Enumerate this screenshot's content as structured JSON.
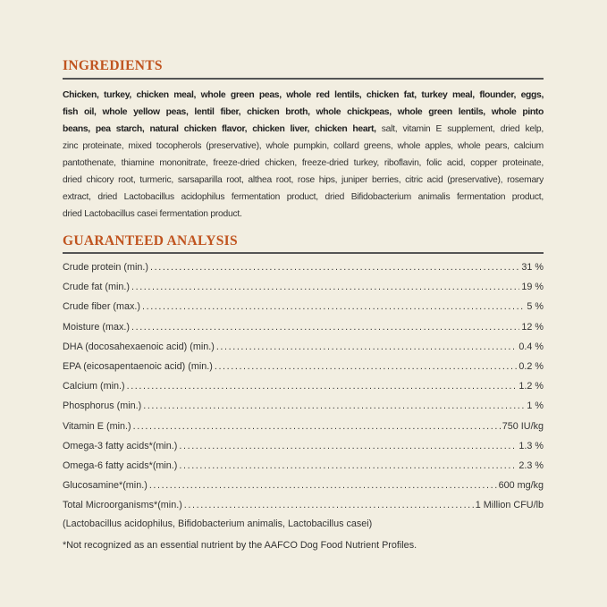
{
  "ingredients": {
    "title": "INGREDIENTS",
    "lines": [
      {
        "bold": "Chicken, turkey, chicken meal, whole green peas, whole red lentils, chicken fat, turkey meal, flounder, eggs,",
        "regular": ""
      },
      {
        "bold": "fish oil, whole yellow peas, lentil fiber, chicken broth, whole chickpeas, whole green lentils, whole pinto",
        "regular": ""
      },
      {
        "bold": "beans, pea starch, natural chicken flavor, chicken liver, chicken heart,",
        "regular": " salt, vitamin E supplement, dried kelp,"
      },
      {
        "bold": "",
        "regular": "zinc proteinate, mixed tocopherols (preservative), whole pumpkin, collard greens, whole apples, whole pears, calcium"
      },
      {
        "bold": "",
        "regular": "pantothenate, thiamine mononitrate, freeze-dried chicken, freeze-dried turkey, riboflavin, folic acid, copper proteinate,"
      },
      {
        "bold": "",
        "regular": "dried chicory root, turmeric, sarsaparilla root, althea root, rose hips, juniper berries, citric acid (preservative), rosemary"
      },
      {
        "bold": "",
        "regular": "extract, dried Lactobacillus acidophilus fermentation product, dried Bifidobacterium animalis fermentation product,"
      },
      {
        "bold": "",
        "regular": "dried Lactobacillus casei fermentation product."
      }
    ]
  },
  "analysis": {
    "title": "GUARANTEED ANALYSIS",
    "rows": [
      {
        "label": "Crude protein (min.)",
        "value": "31 %"
      },
      {
        "label": "Crude fat (min.)",
        "value": "19 %"
      },
      {
        "label": "Crude fiber (max.)",
        "value": "5 %"
      },
      {
        "label": "Moisture (max.)",
        "value": "12 %"
      },
      {
        "label": "DHA (docosahexaenoic acid) (min.)",
        "value": "0.4 %"
      },
      {
        "label": "EPA (eicosapentaenoic acid) (min.)",
        "value": "0.2 %"
      },
      {
        "label": "Calcium (min.)",
        "value": "1.2 %"
      },
      {
        "label": "Phosphorus (min.)",
        "value": "1 %"
      },
      {
        "label": "Vitamin E (min.)",
        "value": "750 IU/kg"
      },
      {
        "label": "Omega-3 fatty acids*(min.)",
        "value": "1.3 %"
      },
      {
        "label": "Omega-6 fatty acids*(min.)",
        "value": "2.3 %"
      },
      {
        "label": "Glucosamine*(min.)",
        "value": "600 mg/kg"
      },
      {
        "label": "Total Microorganisms*(min.)",
        "value": "1 Million CFU/lb"
      }
    ],
    "microorganisms_note": "(Lactobacillus acidophilus, Bifidobacterium animalis, Lactobacillus casei)",
    "footnote": "*Not recognized as an essential nutrient by the AAFCO Dog Food Nutrient Profiles."
  },
  "colors": {
    "background": "#f2eee1",
    "heading": "#c0541f",
    "rule": "#555555"
  }
}
